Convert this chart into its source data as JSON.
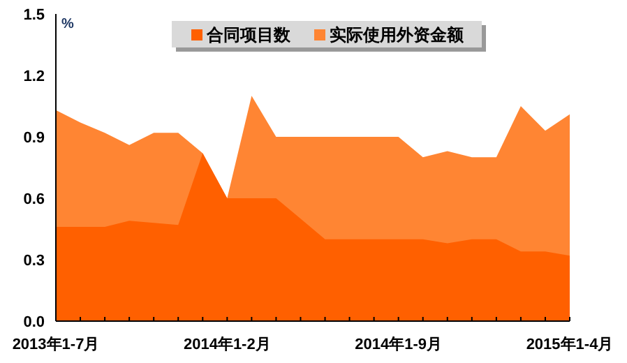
{
  "chart_data": {
    "type": "area",
    "ylabel": "%",
    "legend": "top",
    "categories": [
      "2013年1-7月",
      null,
      null,
      null,
      null,
      null,
      null,
      "2014年1-2月",
      null,
      null,
      null,
      null,
      null,
      null,
      "2014年1-9月",
      null,
      null,
      null,
      null,
      null,
      null,
      "2015年1-4月"
    ],
    "series": [
      {
        "name": "合同项目数",
        "color": "#ff6000",
        "values": [
          0.46,
          0.46,
          0.46,
          0.49,
          0.48,
          0.47,
          0.82,
          0.6,
          0.6,
          0.6,
          0.5,
          0.4,
          0.4,
          0.4,
          0.4,
          0.4,
          0.38,
          0.4,
          0.4,
          0.34,
          0.34,
          0.32
        ]
      },
      {
        "name": "实际使用外资金额",
        "color": "#ff8533",
        "values": [
          1.03,
          0.97,
          0.92,
          0.86,
          0.92,
          0.92,
          0.82,
          0.6,
          1.1,
          0.9,
          0.9,
          0.9,
          0.9,
          0.9,
          0.9,
          0.8,
          0.83,
          0.8,
          0.8,
          1.05,
          0.93,
          1.01
        ]
      }
    ],
    "ylim": [
      0,
      1.5
    ],
    "yticks": [
      {
        "value": 0,
        "label": "0.0"
      },
      0.3,
      0.6,
      0.9,
      1.2,
      1.5
    ]
  }
}
